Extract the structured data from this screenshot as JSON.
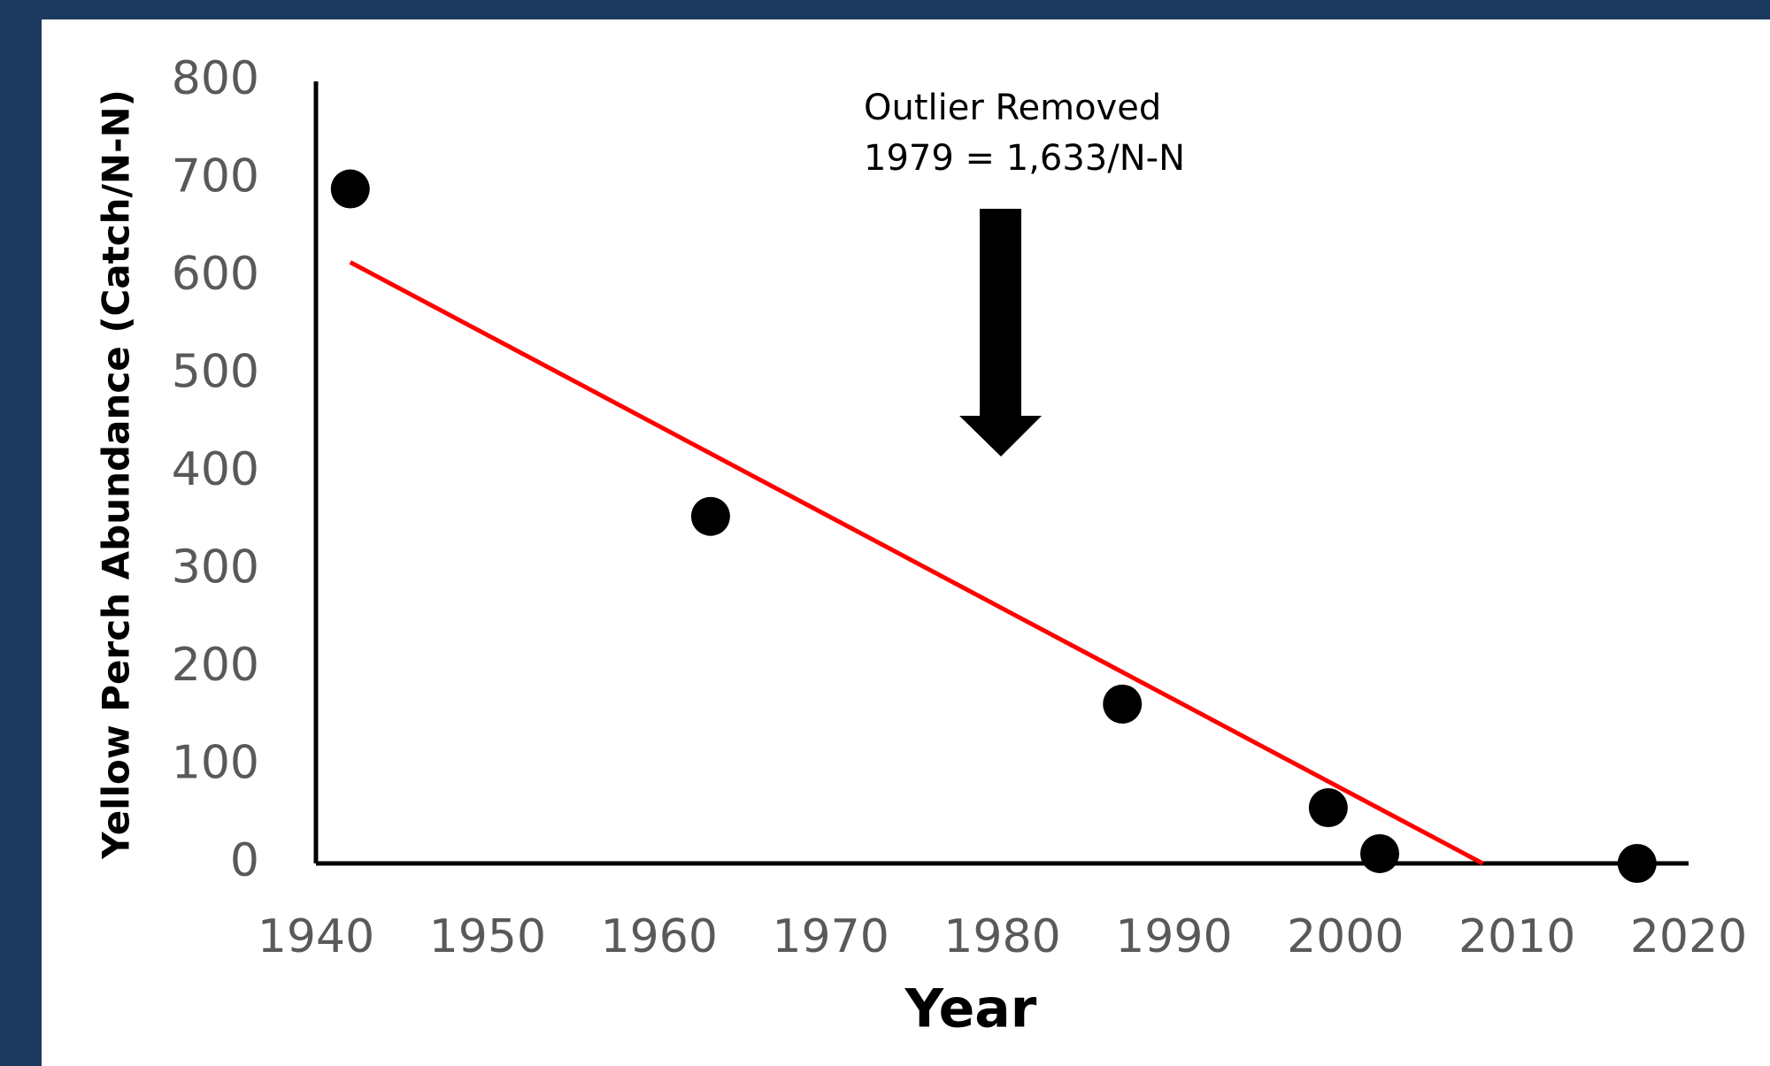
{
  "chart_data": {
    "type": "scatter",
    "x_label": "Year",
    "y_label": "Yellow Perch Abundance (Catch/N-N)",
    "annotation": [
      "Outlier Removed",
      "1979 = 1,633/N-N"
    ],
    "xlim": [
      1940,
      2020
    ],
    "xticks": [
      1940,
      1950,
      1960,
      1970,
      1980,
      1990,
      2000,
      2010,
      2020
    ],
    "ylim": [
      0,
      800
    ],
    "yticks": [
      0,
      100,
      200,
      300,
      400,
      500,
      600,
      700,
      800
    ],
    "series": [
      {
        "color": "#000000",
        "x": [
          1942,
          1963,
          1987,
          1999,
          2002,
          2017
        ],
        "values": [
          690,
          355,
          163,
          57,
          10,
          0
        ]
      }
    ],
    "trendline": {
      "color": "#ff0000",
      "x": [
        1942,
        2008
      ],
      "values": [
        615,
        0
      ]
    }
  }
}
